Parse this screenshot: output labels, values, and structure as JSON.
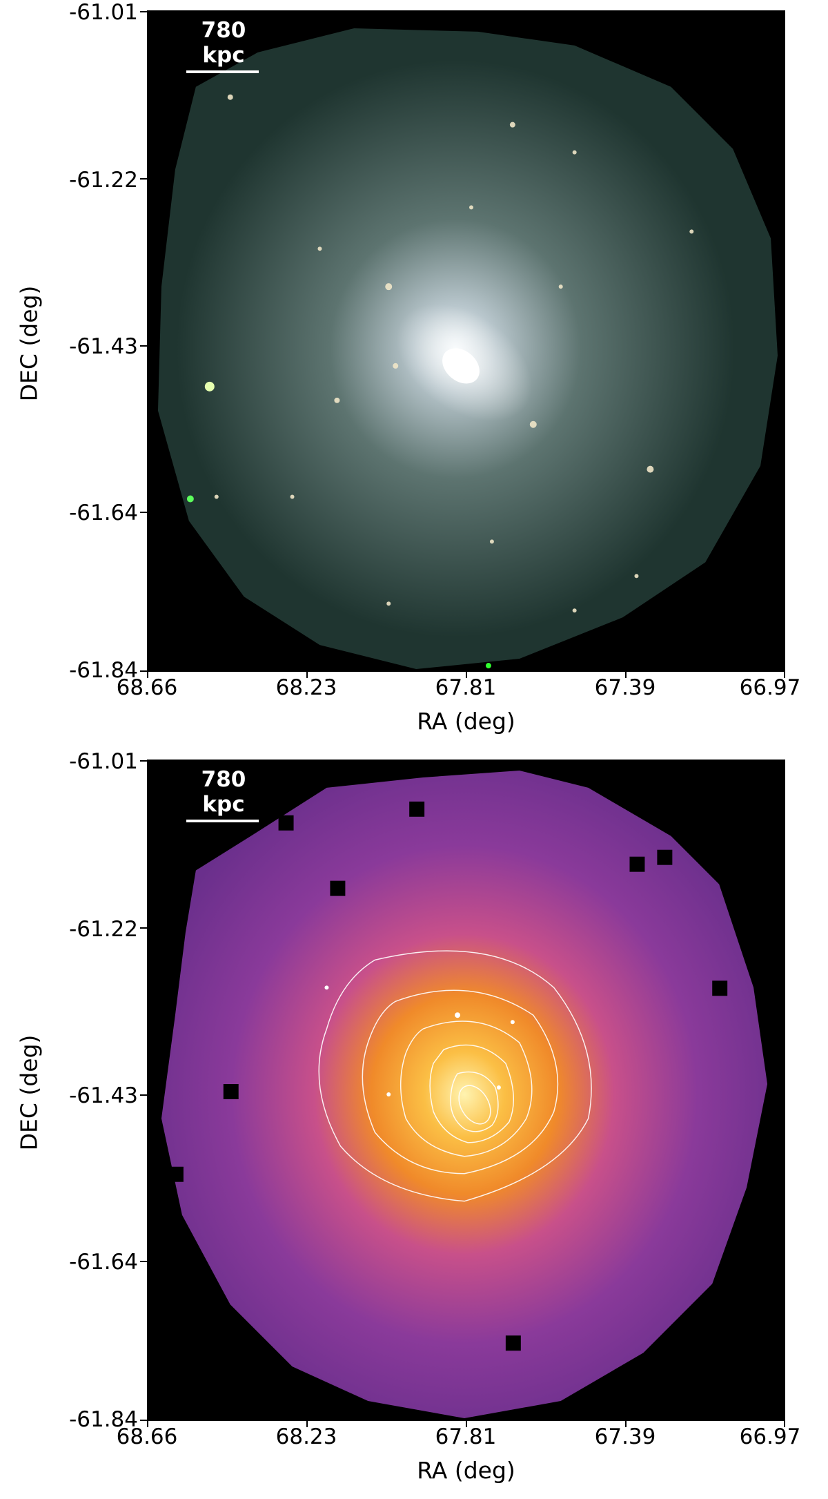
{
  "panels": [
    {
      "scale_label": "780 kpc",
      "y_ticks": [
        "-61.01",
        "-61.22",
        "-61.43",
        "-61.64",
        "-61.84"
      ],
      "x_ticks": [
        "68.66",
        "68.23",
        "67.81",
        "67.39",
        "66.97"
      ],
      "xlabel": "RA (deg)",
      "ylabel": "DEC (deg)"
    },
    {
      "scale_label": "780 kpc",
      "y_ticks": [
        "-61.01",
        "-61.22",
        "-61.43",
        "-61.64",
        "-61.84"
      ],
      "x_ticks": [
        "68.66",
        "68.23",
        "67.81",
        "67.39",
        "66.97"
      ],
      "xlabel": "RA (deg)",
      "ylabel": "DEC (deg)"
    }
  ],
  "colors": {
    "rgb_background": "#1f3530",
    "rgb_core": "#e8f0f4",
    "map_background": "#6a2f8c",
    "map_core": "#fff3b0",
    "map_mid": "#f08a2a",
    "contour": "#ffffff"
  }
}
